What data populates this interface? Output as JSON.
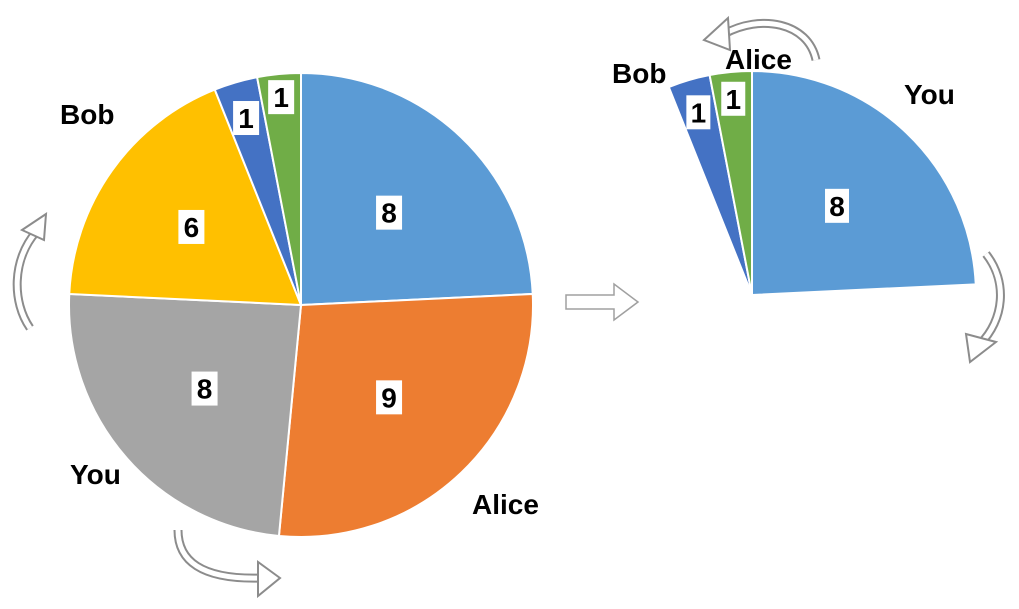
{
  "colors": {
    "blue": "#5B9BD5",
    "orange": "#ED7D31",
    "gray": "#A5A5A5",
    "yellow": "#FFC000",
    "dark_blue": "#4472C4",
    "green": "#70AD47",
    "arrow_stroke": "#8C8C8C"
  },
  "left_pie": {
    "slices": [
      {
        "value": 8,
        "label": "8",
        "color_key": "blue"
      },
      {
        "value": 9,
        "label": "9",
        "color_key": "orange"
      },
      {
        "value": 8,
        "label": "8",
        "color_key": "gray"
      },
      {
        "value": 6,
        "label": "6",
        "color_key": "yellow"
      },
      {
        "value": 1,
        "label": "1",
        "color_key": "dark_blue"
      },
      {
        "value": 1,
        "label": "1",
        "color_key": "green"
      }
    ],
    "names": {
      "bob": "Bob",
      "you": "You",
      "alice": "Alice"
    }
  },
  "right_pie": {
    "slices": [
      {
        "value": 8,
        "label": "8",
        "color_key": "blue"
      },
      {
        "value": 1,
        "label": "1",
        "color_key": "dark_blue"
      },
      {
        "value": 1,
        "label": "1",
        "color_key": "green"
      }
    ],
    "names": {
      "bob": "Bob",
      "alice": "Alice",
      "you": "You"
    }
  },
  "arrows": [
    "rotate-up-arrow-left",
    "rotate-right-arrow-bottom",
    "transition-arrow",
    "rotate-left-arrow-top",
    "rotate-down-arrow-right"
  ]
}
